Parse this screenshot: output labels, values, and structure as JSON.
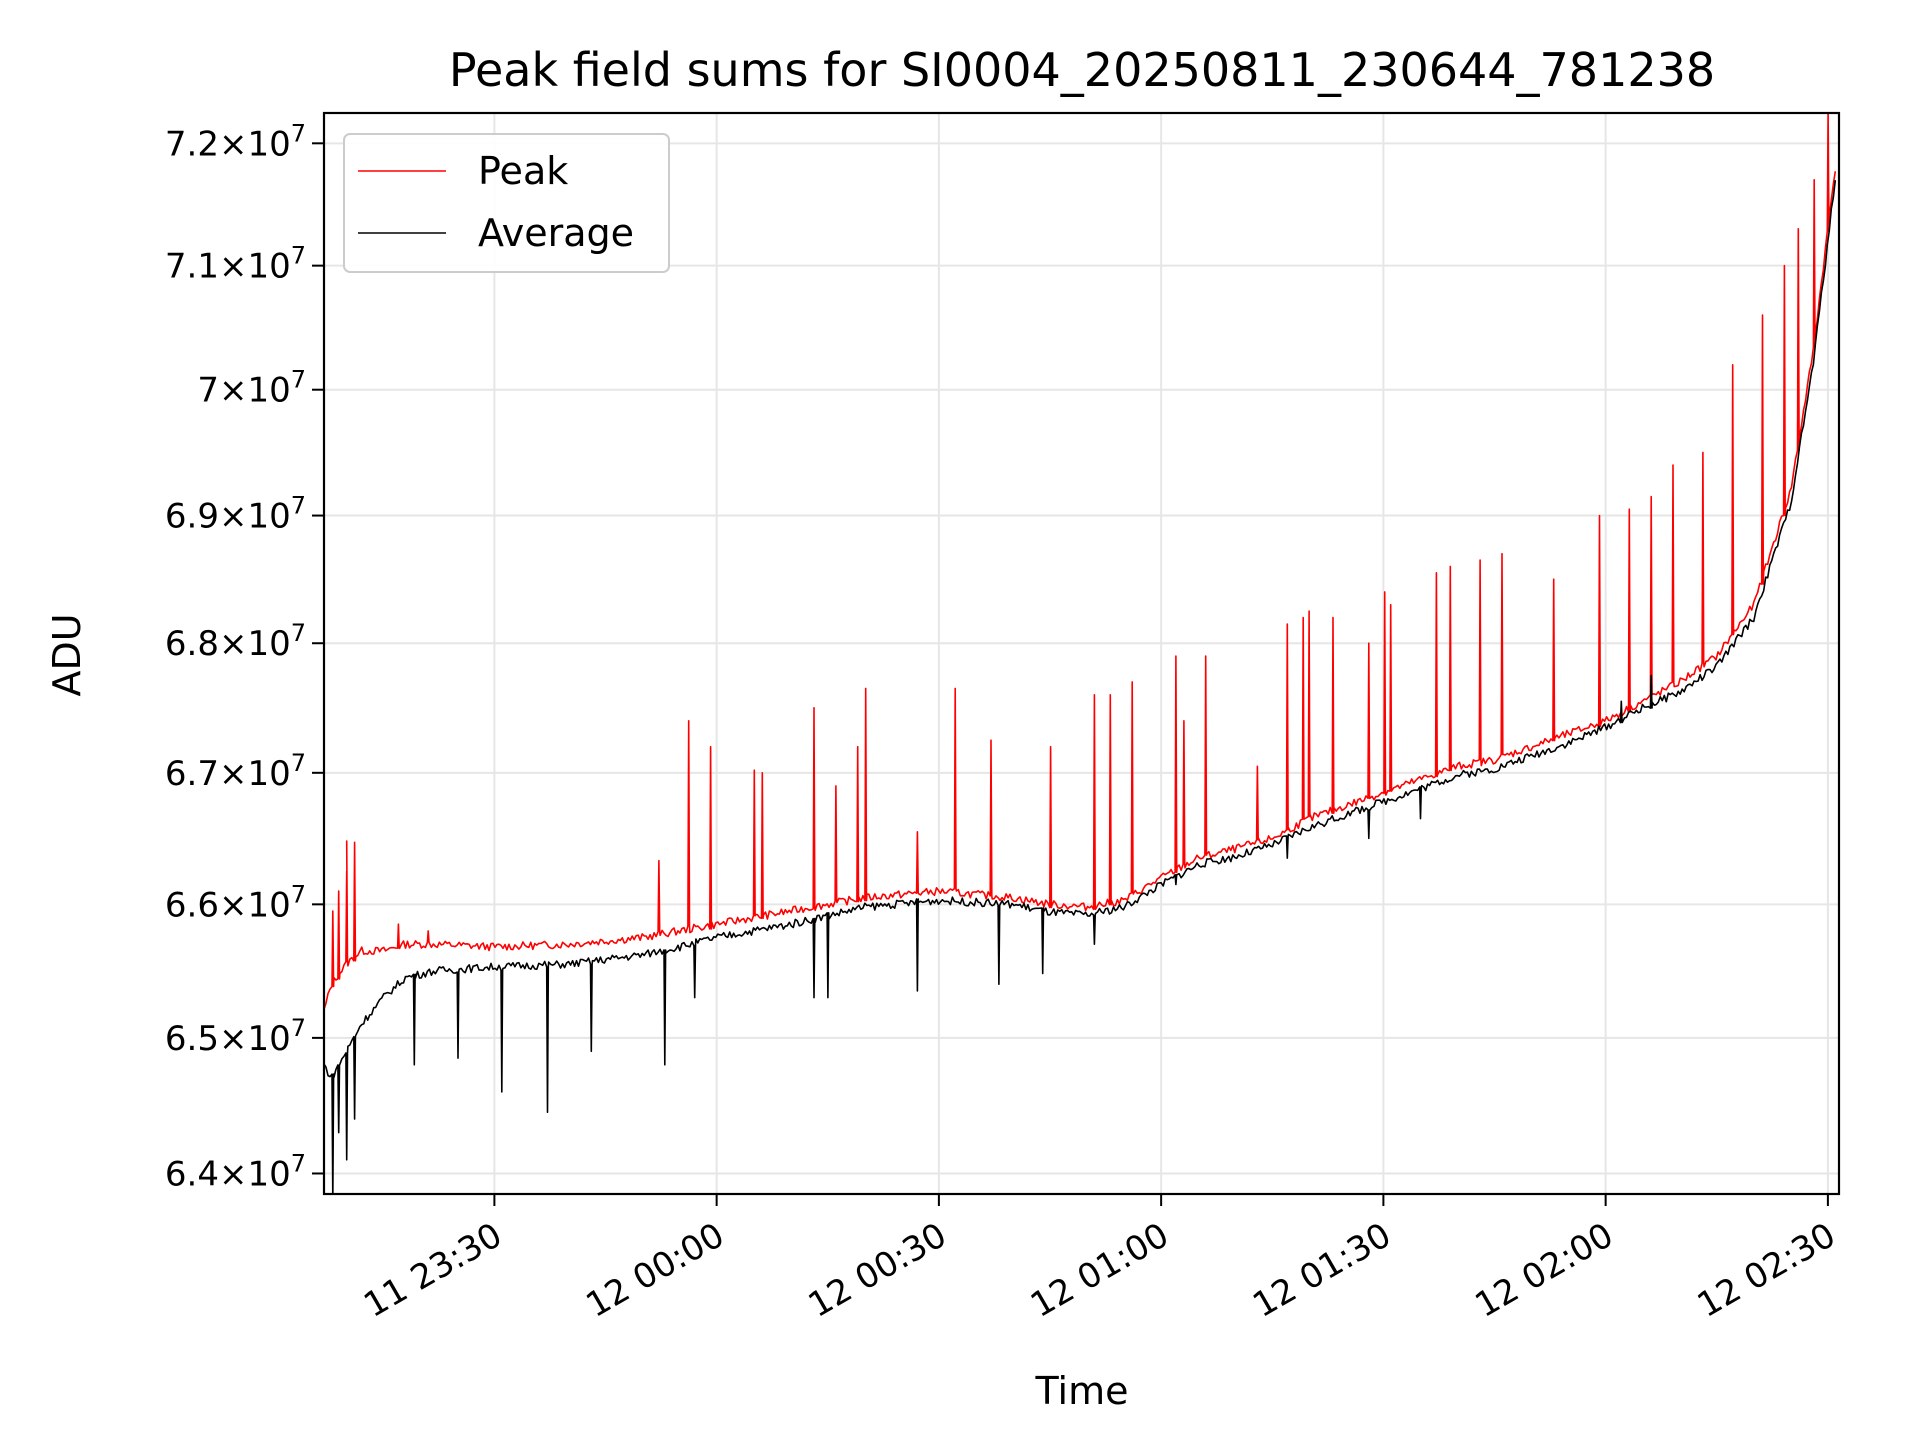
{
  "chart_data": {
    "type": "line",
    "title": "Peak field sums for SI0004_20250811_230644_781238",
    "xlabel": "Time",
    "ylabel": "ADU",
    "x_range": [
      "2025-08-11T23:07:00",
      "2025-08-12T02:31:30"
    ],
    "x_ticks": [
      "11 23:30",
      "12 00:00",
      "12 00:30",
      "12 01:00",
      "12 01:30",
      "12 02:00",
      "12 02:30"
    ],
    "ylim": [
      63850000,
      72250000
    ],
    "y_scale": "log",
    "y_ticks": [
      {
        "mant": "6.4",
        "exp": "7"
      },
      {
        "mant": "6.5",
        "exp": "7"
      },
      {
        "mant": "6.6",
        "exp": "7"
      },
      {
        "mant": "6.7",
        "exp": "7"
      },
      {
        "mant": "6.8",
        "exp": "7"
      },
      {
        "mant": "6.9",
        "exp": "7"
      },
      {
        "mant": "7",
        "exp": "7"
      },
      {
        "mant": "7.1",
        "exp": "7"
      },
      {
        "mant": "7.2",
        "exp": "7"
      }
    ],
    "grid": true,
    "legend_position": "upper-left",
    "series": [
      {
        "name": "Peak",
        "color": "#ff0000",
        "x": [
          "23:07",
          "23:08",
          "23:10",
          "23:12",
          "23:15",
          "23:18",
          "23:22",
          "23:30",
          "23:40",
          "23:50",
          "23:55",
          "00:00",
          "00:10",
          "00:20",
          "00:30",
          "00:40",
          "00:45",
          "00:50",
          "00:55",
          "01:00",
          "01:05",
          "01:10",
          "01:15",
          "01:20",
          "01:25",
          "01:30",
          "01:35",
          "01:40",
          "01:45",
          "01:50",
          "01:55",
          "02:00",
          "02:05",
          "02:10",
          "02:15",
          "02:20",
          "02:25",
          "02:28",
          "02:31"
        ],
        "y": [
          65200000,
          65400000,
          65550000,
          65650000,
          65650000,
          65700000,
          65700000,
          65680000,
          65700000,
          65750000,
          65800000,
          65850000,
          65950000,
          66050000,
          66100000,
          66050000,
          66000000,
          65980000,
          66030000,
          66200000,
          66350000,
          66420000,
          66500000,
          66650000,
          66750000,
          66850000,
          66950000,
          67050000,
          67100000,
          67200000,
          67300000,
          67400000,
          67550000,
          67700000,
          67900000,
          68300000,
          69200000,
          70300000,
          71800000
        ],
        "spikes": [
          {
            "x": "23:08",
            "y": 65950000
          },
          {
            "x": "23:09",
            "y": 66100000
          },
          {
            "x": "23:10",
            "y": 66250000
          },
          {
            "x": "23:10",
            "y": 66480000
          },
          {
            "x": "23:11",
            "y": 66470000
          },
          {
            "x": "23:17",
            "y": 65850000
          },
          {
            "x": "23:21",
            "y": 65800000
          },
          {
            "x": "23:52",
            "y": 66330000
          },
          {
            "x": "23:56",
            "y": 67400000
          },
          {
            "x": "23:59",
            "y": 67200000
          },
          {
            "x": "00:05",
            "y": 67020000
          },
          {
            "x": "00:06",
            "y": 67000000
          },
          {
            "x": "00:13",
            "y": 67500000
          },
          {
            "x": "00:16",
            "y": 66900000
          },
          {
            "x": "00:19",
            "y": 67200000
          },
          {
            "x": "00:20",
            "y": 67650000
          },
          {
            "x": "00:27",
            "y": 66550000
          },
          {
            "x": "00:32",
            "y": 67650000
          },
          {
            "x": "00:37",
            "y": 67250000
          },
          {
            "x": "00:45",
            "y": 67200000
          },
          {
            "x": "00:51",
            "y": 67600000
          },
          {
            "x": "00:53",
            "y": 67600000
          },
          {
            "x": "00:56",
            "y": 67700000
          },
          {
            "x": "01:02",
            "y": 67900000
          },
          {
            "x": "01:03",
            "y": 67400000
          },
          {
            "x": "01:06",
            "y": 67900000
          },
          {
            "x": "01:13",
            "y": 67050000
          },
          {
            "x": "01:17",
            "y": 68150000
          },
          {
            "x": "01:19",
            "y": 68200000
          },
          {
            "x": "01:20",
            "y": 68250000
          },
          {
            "x": "01:23",
            "y": 68200000
          },
          {
            "x": "01:28",
            "y": 68000000
          },
          {
            "x": "01:30",
            "y": 68400000
          },
          {
            "x": "01:31",
            "y": 68300000
          },
          {
            "x": "01:37",
            "y": 68550000
          },
          {
            "x": "01:39",
            "y": 68600000
          },
          {
            "x": "01:43",
            "y": 68650000
          },
          {
            "x": "01:46",
            "y": 68700000
          },
          {
            "x": "01:53",
            "y": 68500000
          },
          {
            "x": "01:59",
            "y": 69000000
          },
          {
            "x": "02:03",
            "y": 69050000
          },
          {
            "x": "02:06",
            "y": 69150000
          },
          {
            "x": "02:09",
            "y": 69400000
          },
          {
            "x": "02:13",
            "y": 69500000
          },
          {
            "x": "02:17",
            "y": 70200000
          },
          {
            "x": "02:21",
            "y": 70600000
          },
          {
            "x": "02:24",
            "y": 71000000
          },
          {
            "x": "02:26",
            "y": 71300000
          },
          {
            "x": "02:28",
            "y": 71700000
          },
          {
            "x": "02:30",
            "y": 72250000
          }
        ]
      },
      {
        "name": "Average",
        "color": "#000000",
        "x": [
          "23:07",
          "23:08",
          "23:10",
          "23:12",
          "23:15",
          "23:18",
          "23:22",
          "23:30",
          "23:40",
          "23:50",
          "23:55",
          "00:00",
          "00:10",
          "00:20",
          "00:30",
          "00:40",
          "00:45",
          "00:50",
          "00:55",
          "01:00",
          "01:05",
          "01:10",
          "01:15",
          "01:20",
          "01:25",
          "01:30",
          "01:35",
          "01:40",
          "01:45",
          "01:50",
          "01:55",
          "02:00",
          "02:05",
          "02:10",
          "02:15",
          "02:20",
          "02:25",
          "02:28",
          "02:31"
        ],
        "y": [
          64800000,
          64700000,
          64900000,
          65100000,
          65300000,
          65450000,
          65500000,
          65530000,
          65550000,
          65620000,
          65680000,
          65750000,
          65850000,
          65980000,
          66030000,
          66000000,
          65940000,
          65920000,
          65980000,
          66150000,
          66300000,
          66360000,
          66450000,
          66580000,
          66680000,
          66780000,
          66880000,
          66980000,
          67030000,
          67130000,
          67230000,
          67350000,
          67500000,
          67620000,
          67820000,
          68200000,
          69100000,
          70200000,
          71700000
        ],
        "spikes": [
          {
            "x": "23:08",
            "y": 63800000
          },
          {
            "x": "23:09",
            "y": 64300000
          },
          {
            "x": "23:10",
            "y": 64100000
          },
          {
            "x": "23:11",
            "y": 64400000
          },
          {
            "x": "23:19",
            "y": 64800000
          },
          {
            "x": "23:25",
            "y": 64850000
          },
          {
            "x": "23:31",
            "y": 64600000
          },
          {
            "x": "23:37",
            "y": 64450000
          },
          {
            "x": "23:43",
            "y": 64900000
          },
          {
            "x": "23:53",
            "y": 64800000
          },
          {
            "x": "23:57",
            "y": 65300000
          },
          {
            "x": "00:13",
            "y": 65300000
          },
          {
            "x": "00:15",
            "y": 65300000
          },
          {
            "x": "00:27",
            "y": 65350000
          },
          {
            "x": "00:38",
            "y": 65400000
          },
          {
            "x": "00:44",
            "y": 65480000
          },
          {
            "x": "00:51",
            "y": 65700000
          },
          {
            "x": "01:02",
            "y": 66150000
          },
          {
            "x": "01:17",
            "y": 66350000
          },
          {
            "x": "01:28",
            "y": 66500000
          },
          {
            "x": "01:35",
            "y": 66650000
          },
          {
            "x": "02:02",
            "y": 67550000
          },
          {
            "x": "02:06",
            "y": 67750000
          }
        ]
      }
    ]
  }
}
